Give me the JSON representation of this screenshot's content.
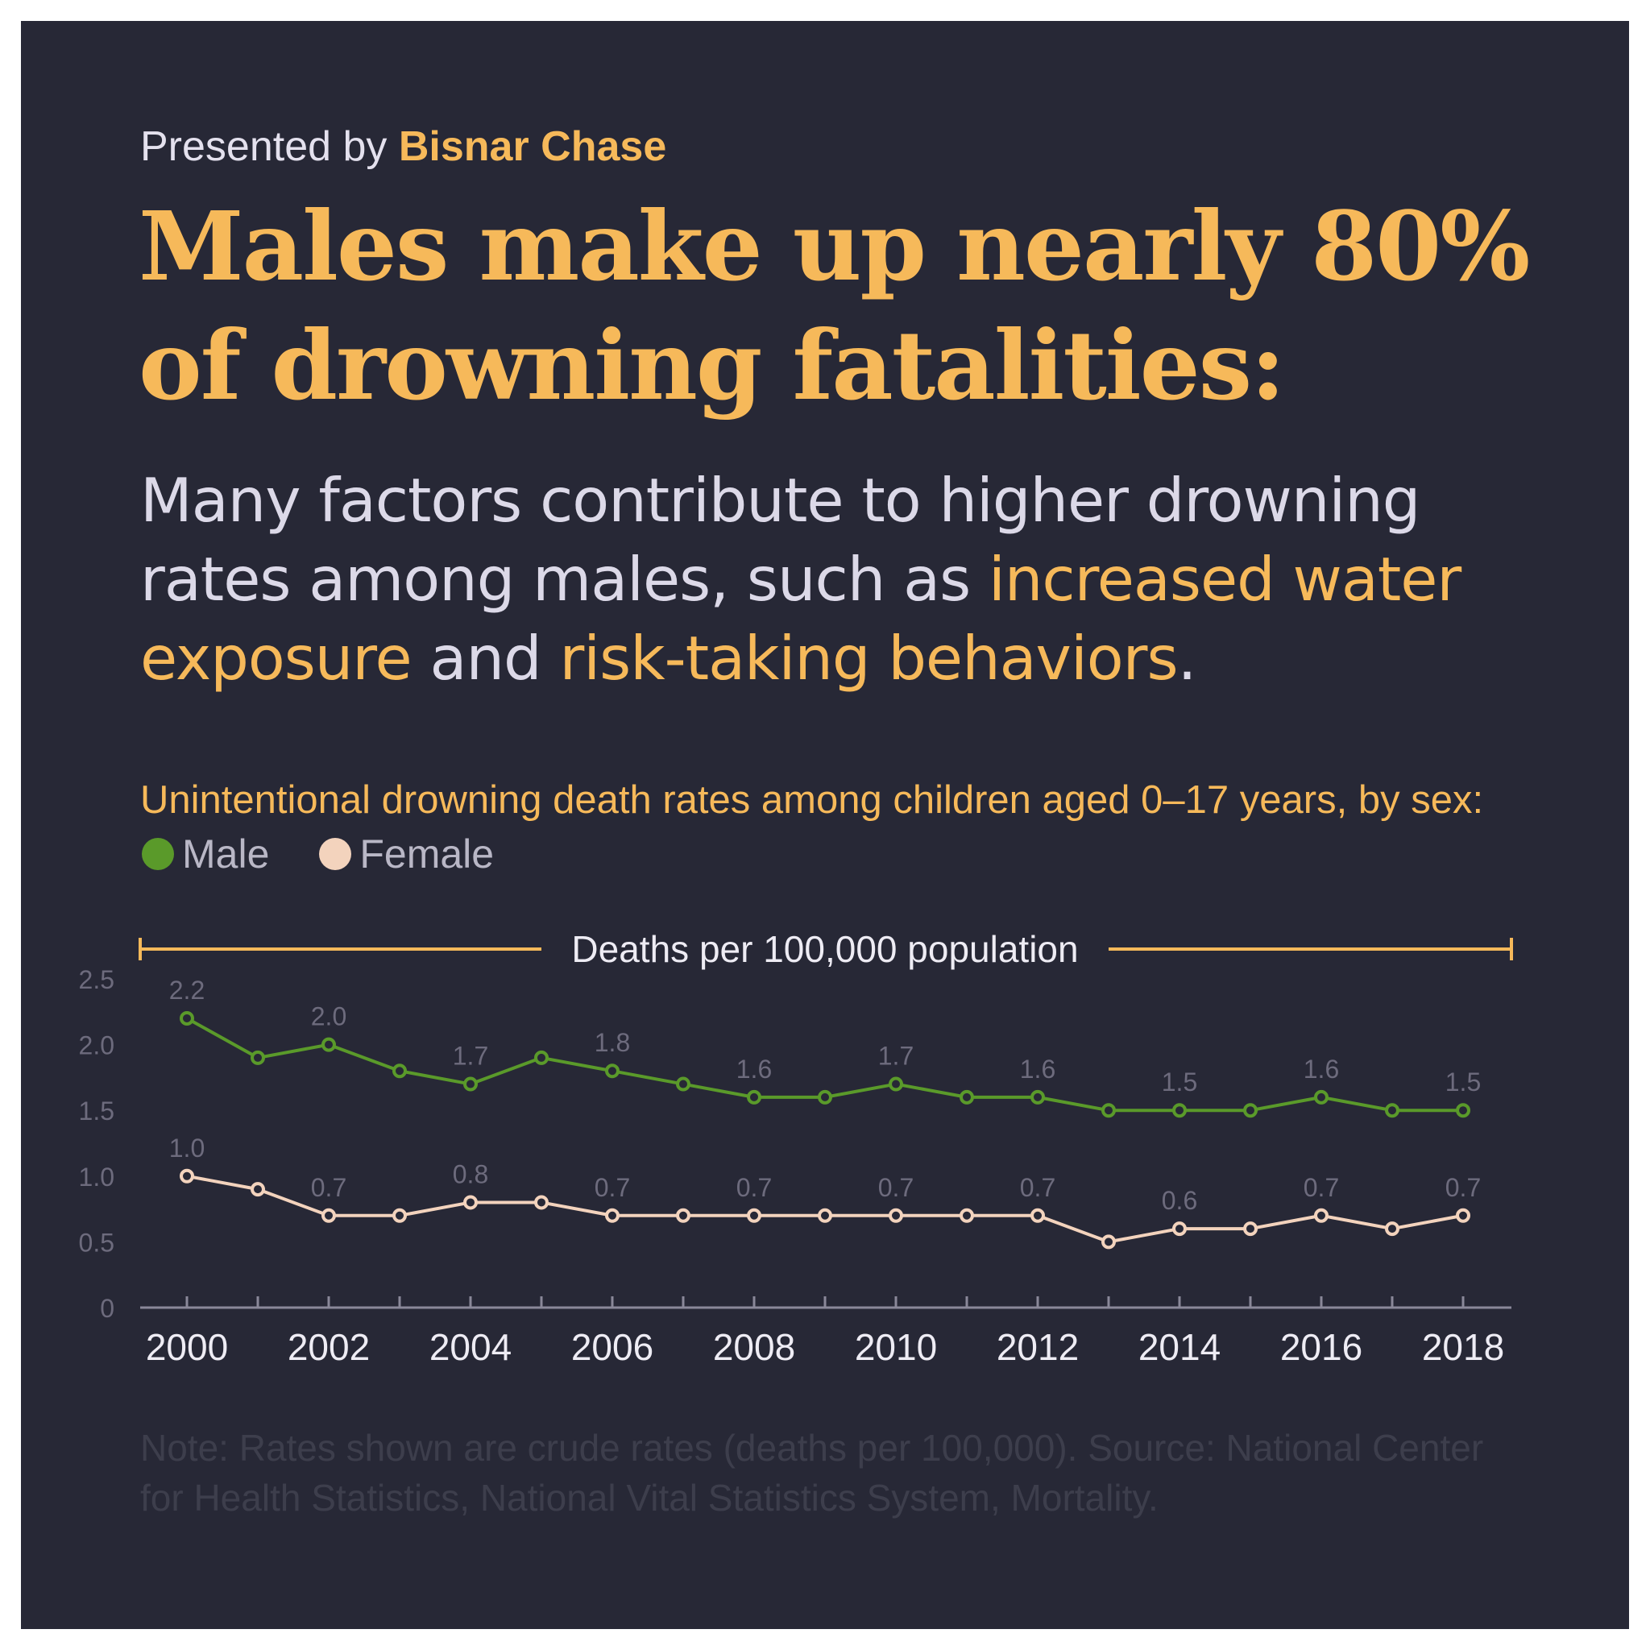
{
  "header": {
    "presented_prefix": "Presented by",
    "brand": "Bisnar Chase",
    "headline_line1": "Males make up nearly 80%",
    "headline_line2": "of drowning fatalities:",
    "sub_part1": "Many factors contribute to higher drowning rates among males, such as ",
    "sub_hl1": "increased water exposure",
    "sub_part2": " and ",
    "sub_hl2": "risk-taking behaviors",
    "sub_part3": "."
  },
  "colors": {
    "background": "#272836",
    "accent": "#f6b95a",
    "male": "#5a9a2a",
    "female": "#f3d3bd",
    "axis": "#8a8899",
    "muted_label": "#6d6b7d"
  },
  "chart_data": {
    "type": "line",
    "title": "Unintentional drowning death rates among children aged 0–17 years, by sex:",
    "ylabel": "Deaths per 100,000 population",
    "x": [
      2000,
      2001,
      2002,
      2003,
      2004,
      2005,
      2006,
      2007,
      2008,
      2009,
      2010,
      2011,
      2012,
      2013,
      2014,
      2015,
      2016,
      2017,
      2018
    ],
    "x_tick_labels": [
      "2000",
      "2002",
      "2004",
      "2006",
      "2008",
      "2010",
      "2012",
      "2014",
      "2016",
      "2018"
    ],
    "y_tick_labels": [
      "0",
      "0.5",
      "1.0",
      "1.5",
      "2.0",
      "2.5"
    ],
    "ylim": [
      0,
      2.5
    ],
    "legend_placement": "top-left",
    "grid": false,
    "series": [
      {
        "name": "Male",
        "color": "#5a9a2a",
        "values": [
          2.2,
          1.9,
          2.0,
          1.8,
          1.7,
          1.9,
          1.8,
          1.7,
          1.6,
          1.6,
          1.7,
          1.6,
          1.6,
          1.5,
          1.5,
          1.5,
          1.6,
          1.5,
          1.5
        ],
        "data_labels": {
          "2000": "2.2",
          "2002": "2.0",
          "2004": "1.7",
          "2006": "1.8",
          "2008": "1.6",
          "2010": "1.7",
          "2012": "1.6",
          "2014": "1.5",
          "2016": "1.6",
          "2018": "1.5"
        }
      },
      {
        "name": "Female",
        "color": "#f3d3bd",
        "values": [
          1.0,
          0.9,
          0.7,
          0.7,
          0.8,
          0.8,
          0.7,
          0.7,
          0.7,
          0.7,
          0.7,
          0.7,
          0.7,
          0.5,
          0.6,
          0.6,
          0.7,
          0.6,
          0.7
        ],
        "data_labels": {
          "2000": "1.0",
          "2002": "0.7",
          "2004": "0.8",
          "2006": "0.7",
          "2008": "0.7",
          "2010": "0.7",
          "2012": "0.7",
          "2014": "0.6",
          "2016": "0.7",
          "2018": "0.7"
        }
      }
    ]
  },
  "note": "Note: Rates shown are crude rates (deaths per 100,000). Source: National Center for Health Statistics, National Vital Statistics System, Mortality."
}
